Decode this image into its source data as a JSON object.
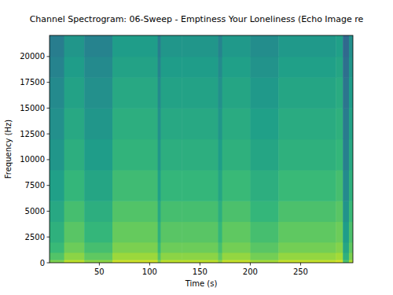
{
  "chart_data": {
    "type": "heatmap",
    "title": "Channel Spectrogram: 06-Sweep - Emptiness Your Loneliness (Echo Image re",
    "x_label": "Time (s)",
    "y_label": "Frequency (Hz)",
    "xlim": [
      0.5,
      302
    ],
    "ylim": [
      0,
      22050
    ],
    "xticks": [
      50,
      100,
      150,
      200,
      250
    ],
    "yticks": [
      0,
      2500,
      5000,
      7500,
      10000,
      12500,
      15000,
      17500,
      20000
    ],
    "time_edges": [
      0.5,
      15,
      35,
      63,
      108,
      111,
      132,
      168,
      172,
      200,
      228,
      285,
      292,
      298,
      302
    ],
    "freq_edges": [
      0,
      300,
      1000,
      2000,
      4000,
      6000,
      9000,
      12000,
      15000,
      18000,
      20000,
      22050
    ],
    "zlim": [
      -100,
      -20
    ],
    "cells": [
      [
        -36,
        -28,
        -34,
        -26,
        -36,
        -28,
        -28,
        -34,
        -27,
        -31,
        -27,
        -25,
        -43,
        -30
      ],
      [
        -42,
        -34,
        -40,
        -32,
        -42,
        -34,
        -34,
        -40,
        -33,
        -37,
        -33,
        -31,
        -49,
        -36
      ],
      [
        -46,
        -38,
        -44,
        -36,
        -46,
        -38,
        -38,
        -44,
        -37,
        -41,
        -37,
        -35,
        -53,
        -40
      ],
      [
        -49,
        -41,
        -47,
        -39,
        -49,
        -41,
        -41,
        -47,
        -40,
        -44,
        -40,
        -38,
        -56,
        -43
      ],
      [
        -52,
        -44,
        -50,
        -42,
        -52,
        -44,
        -44,
        -50,
        -43,
        -47,
        -43,
        -41,
        -59,
        -46
      ],
      [
        -55,
        -47,
        -53,
        -45,
        -55,
        -47,
        -47,
        -53,
        -46,
        -50,
        -46,
        -44,
        -62,
        -49
      ],
      [
        -58,
        -50,
        -56,
        -48,
        -58,
        -50,
        -50,
        -56,
        -49,
        -53,
        -49,
        -47,
        -65,
        -52
      ],
      [
        -60,
        -52,
        -58,
        -50,
        -60,
        -52,
        -52,
        -58,
        -51,
        -55,
        -51,
        -49,
        -67,
        -54
      ],
      [
        -62,
        -54,
        -60,
        -52,
        -62,
        -54,
        -54,
        -60,
        -53,
        -57,
        -53,
        -51,
        -69,
        -56
      ],
      [
        -64,
        -56,
        -62,
        -54,
        -64,
        -56,
        -56,
        -62,
        -55,
        -59,
        -55,
        -53,
        -71,
        -58
      ],
      [
        -66,
        -58,
        -64,
        -56,
        -66,
        -58,
        -58,
        -64,
        -57,
        -61,
        -57,
        -55,
        -73,
        -60
      ]
    ]
  }
}
